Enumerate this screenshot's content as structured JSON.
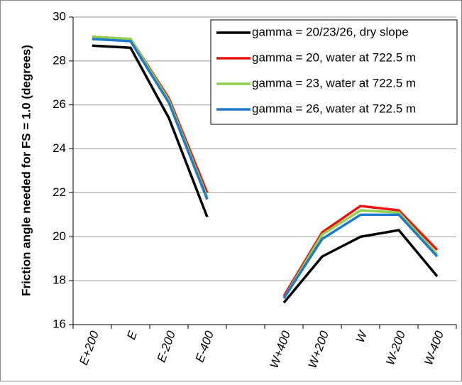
{
  "chart_data": {
    "type": "line",
    "y_label": "Friction angle needed for FS = 1.0 (degrees)",
    "categories": [
      "E+200",
      "E",
      "E-200",
      "E-400",
      null,
      "W+400",
      "W+200",
      "W",
      "W-200",
      "W-400"
    ],
    "series": [
      {
        "name": "gamma = 20/23/26, dry slope",
        "color": "#000000",
        "values": [
          28.7,
          28.6,
          25.4,
          20.9,
          null,
          17.0,
          19.1,
          20.0,
          20.3,
          18.2
        ]
      },
      {
        "name": "gamma = 20, water at 722.5 m",
        "color": "#e8150f",
        "values": [
          29.1,
          29.0,
          26.3,
          22.0,
          null,
          17.3,
          20.2,
          21.4,
          21.2,
          19.4
        ]
      },
      {
        "name": "gamma = 23, water at 722.5 m",
        "color": "#8fd14f",
        "values": [
          29.1,
          29.0,
          26.2,
          21.8,
          null,
          17.2,
          20.1,
          21.2,
          21.1,
          19.2
        ]
      },
      {
        "name": "gamma = 26, water at 722.5 m",
        "color": "#1f7ac8",
        "values": [
          29.0,
          28.9,
          26.1,
          21.7,
          null,
          17.2,
          19.9,
          21.0,
          21.0,
          19.1
        ]
      }
    ],
    "ylim": [
      16,
      30
    ],
    "yticks": [
      16,
      18,
      20,
      22,
      24,
      26,
      28,
      30
    ],
    "grid": true,
    "legend": "top-right"
  }
}
